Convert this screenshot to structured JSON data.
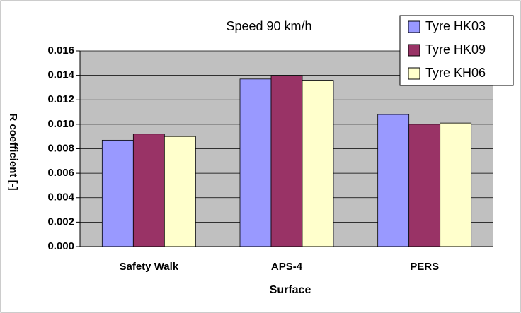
{
  "chart_data": {
    "type": "bar",
    "title": "Speed 90 km/h",
    "x_label": "Surface",
    "y_label": "R coefficient [-]",
    "categories": [
      "Safety Walk",
      "APS-4",
      "PERS"
    ],
    "series": [
      {
        "name": "Tyre HK03",
        "color": "#9999ff",
        "values": [
          0.0087,
          0.0137,
          0.0108
        ]
      },
      {
        "name": "Tyre HK09",
        "color": "#993366",
        "values": [
          0.0092,
          0.014,
          0.01
        ]
      },
      {
        "name": "Tyre KH06",
        "color": "#ffffcc",
        "values": [
          0.009,
          0.0136,
          0.0101
        ]
      }
    ],
    "ylim": [
      0,
      0.016
    ],
    "yticks": [
      {
        "value": 0,
        "label": "0.000"
      },
      0.002,
      0.004,
      0.006,
      0.008,
      {
        "value": 0.01,
        "label": "0.010"
      },
      0.012,
      0.014,
      0.016
    ],
    "grid": true,
    "legend": "top-right"
  }
}
